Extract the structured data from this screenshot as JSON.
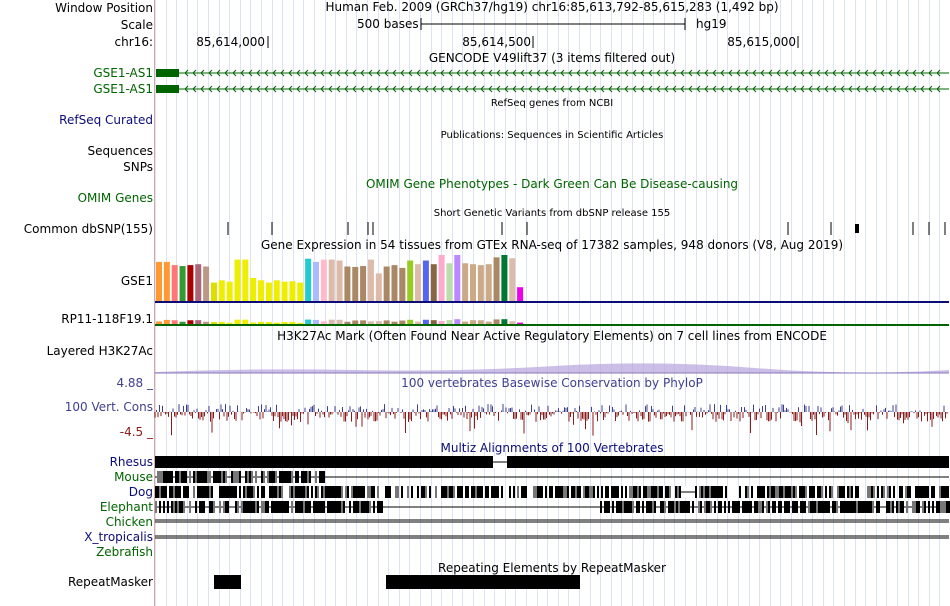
{
  "header": {
    "window_position_label": "Window Position",
    "scale_label": "Scale",
    "chrom_label": "chr16:",
    "assembly_position": "Human Feb. 2009 (GRCh37/hg19)   chr16:85,613,792-85,615,283 (1,492 bp)",
    "scale_text": "500 bases",
    "db": "hg19",
    "ticks": [
      "85,614,000",
      "85,614,500",
      "85,615,000"
    ]
  },
  "tracks": {
    "gencode_title": "GENCODE V49lift37 (3 items filtered out)",
    "gencode_items": [
      "GSE1-AS1",
      "GSE1-AS1"
    ],
    "refseq_title": "RefSeq genes from NCBI",
    "refseq_label": "RefSeq Curated",
    "publications_title": "Publications: Sequences in Scientific Articles",
    "sequences_label": "Sequences",
    "snps_label": "SNPs",
    "omim_title": "OMIM Gene Phenotypes - Dark Green Can Be Disease-causing",
    "omim_label": "OMIM Genes",
    "dbsnp_title": "Short Genetic Variants from dbSNP release 155",
    "dbsnp_label": "Common dbSNP(155)",
    "gtex_title": "Gene Expression in 54 tissues from GTEx RNA-seq of 17382 samples, 948 donors (V8, Aug 2019)",
    "gtex_gene1": "GSE1",
    "gtex_gene2": "RP11-118F19.1",
    "h3k27ac_title": "H3K27Ac Mark (Often Found Near Active Regulatory Elements) on 7 cell lines from ENCODE",
    "h3k27ac_label": "Layered H3K27Ac",
    "phylop_title": "100 vertebrates Basewise Conservation by PhyloP",
    "phylop_label": "100 Vert. Cons",
    "phylop_max": "4.88 _",
    "phylop_min": "-4.5 _",
    "multiz_title": "Multiz Alignments of 100 Vertebrates",
    "species": [
      "Rhesus",
      "Mouse",
      "Dog",
      "Elephant",
      "Chicken",
      "X_tropicalis",
      "Zebrafish"
    ],
    "repeat_title": "Repeating Elements by RepeatMasker",
    "repeat_label": "RepeatMasker"
  },
  "colors": {
    "gencode": "#006400",
    "link_blue": "#0c0c78",
    "omim_green": "#006400",
    "phylop": "#3f3f8f",
    "phylop_neg": "#8b1a1a",
    "grid": "#dce3f2"
  },
  "gtex_bar_colors": [
    "#ff9933",
    "#ff9933",
    "#ff7777",
    "#339933",
    "#aa0000",
    "#aa6677",
    "#bb9988",
    "#dddd00",
    "#eeee00",
    "#eeee00",
    "#eeee00",
    "#eeee00",
    "#eeee00",
    "#eeee00",
    "#eeee00",
    "#eeee00",
    "#eeee00",
    "#eeee00",
    "#eeee00",
    "#22cccc",
    "#aabbff",
    "#ffbbcc",
    "#ddbbaa",
    "#ddbbaa",
    "#aa8866",
    "#aa8866",
    "#aa8866",
    "#ddbbaa",
    "#ddbbaa",
    "#aa8866",
    "#aa8866",
    "#aa8866",
    "#99cc22",
    "#ddbbaa",
    "#5566ee",
    "#886644",
    "#ffaacc",
    "#bbddaa",
    "#bb88ff",
    "#ccaa88",
    "#ccaa88",
    "#ccaa88",
    "#ccaa88",
    "#aa8866",
    "#007733",
    "#ddbbaa",
    "#ee00ee"
  ],
  "gtex_values": [
    0.85,
    0.85,
    0.78,
    0.76,
    0.78,
    0.8,
    0.75,
    0.4,
    0.45,
    0.42,
    0.9,
    0.9,
    0.5,
    0.45,
    0.4,
    0.45,
    0.42,
    0.43,
    0.4,
    0.92,
    0.85,
    0.9,
    0.9,
    0.88,
    0.75,
    0.74,
    0.76,
    0.9,
    0.6,
    0.75,
    0.78,
    0.72,
    0.88,
    0.8,
    0.88,
    0.8,
    1.0,
    0.82,
    1.0,
    0.82,
    0.8,
    0.78,
    0.8,
    0.95,
    1.0,
    0.93,
    0.3
  ]
}
